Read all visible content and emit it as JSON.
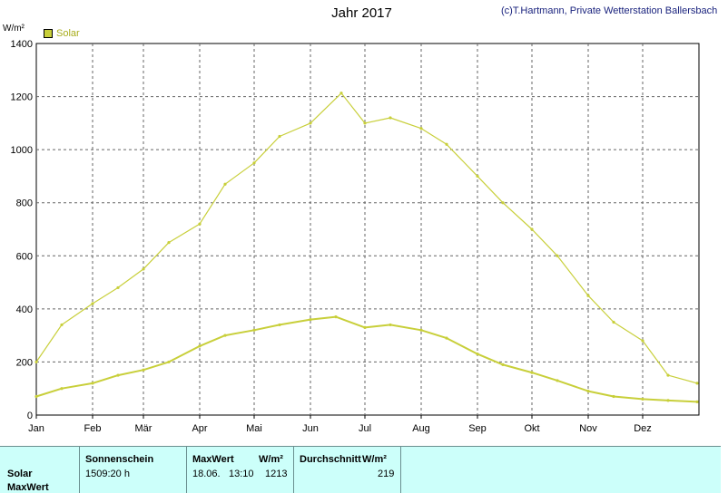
{
  "title": "Jahr 2017",
  "copyright": "(c)T.Hartmann, Private Wetterstation Ballersbach",
  "colors": {
    "series": "#c8cf3a",
    "legend_text": "#a8ac1a",
    "grid": "#666666",
    "footer_bg": "#ccfffa",
    "copyright": "#1a237e"
  },
  "chart_data": {
    "type": "line",
    "ylabel": "W/m²",
    "ylim": [
      0,
      1400
    ],
    "y_ticks": [
      0,
      200,
      400,
      600,
      800,
      1000,
      1200,
      1400
    ],
    "x_ticks": [
      "Jan",
      "Feb",
      "Mär",
      "Apr",
      "Mai",
      "Jun",
      "Jul",
      "Aug",
      "Sep",
      "Okt",
      "Nov",
      "Dez"
    ],
    "grid": true,
    "legend_position": "top-left",
    "series": [
      {
        "name": "Solar",
        "role": "daily max",
        "x": [
          "01-01",
          "01-15",
          "02-01",
          "02-15",
          "03-01",
          "03-15",
          "04-01",
          "04-15",
          "05-01",
          "05-15",
          "06-01",
          "06-18",
          "07-01",
          "07-15",
          "08-01",
          "08-15",
          "09-01",
          "09-15",
          "10-01",
          "10-15",
          "11-01",
          "11-15",
          "12-01",
          "12-15",
          "12-31"
        ],
        "values": [
          200,
          340,
          420,
          480,
          550,
          650,
          720,
          870,
          950,
          1050,
          1100,
          1213,
          1100,
          1120,
          1080,
          1020,
          900,
          800,
          700,
          600,
          450,
          350,
          280,
          150,
          120
        ]
      },
      {
        "name": "Solar",
        "role": "daily mean",
        "x": [
          "01-01",
          "01-15",
          "02-01",
          "02-15",
          "03-01",
          "03-15",
          "04-01",
          "04-15",
          "05-01",
          "05-15",
          "06-01",
          "06-15",
          "07-01",
          "07-15",
          "08-01",
          "08-15",
          "09-01",
          "09-15",
          "10-01",
          "10-15",
          "11-01",
          "11-15",
          "12-01",
          "12-15",
          "12-31"
        ],
        "values": [
          70,
          100,
          120,
          150,
          170,
          200,
          260,
          300,
          320,
          340,
          360,
          370,
          330,
          340,
          320,
          290,
          230,
          190,
          160,
          130,
          90,
          70,
          60,
          55,
          50
        ]
      }
    ]
  },
  "footer": {
    "row_labels": [
      "Solar",
      "MaxWert"
    ],
    "sonnenschein_header": "Sonnenschein",
    "sonnenschein_value": "1509:20 h",
    "maxwert_header": "MaxWert",
    "maxwert_unit": "W/m²",
    "maxwert_date": "18.06.",
    "maxwert_time": "13:10",
    "maxwert_value": "1213",
    "durchschnitt_header": "Durchschnitt",
    "durchschnitt_unit": "W/m²",
    "durchschnitt_value": "219"
  }
}
